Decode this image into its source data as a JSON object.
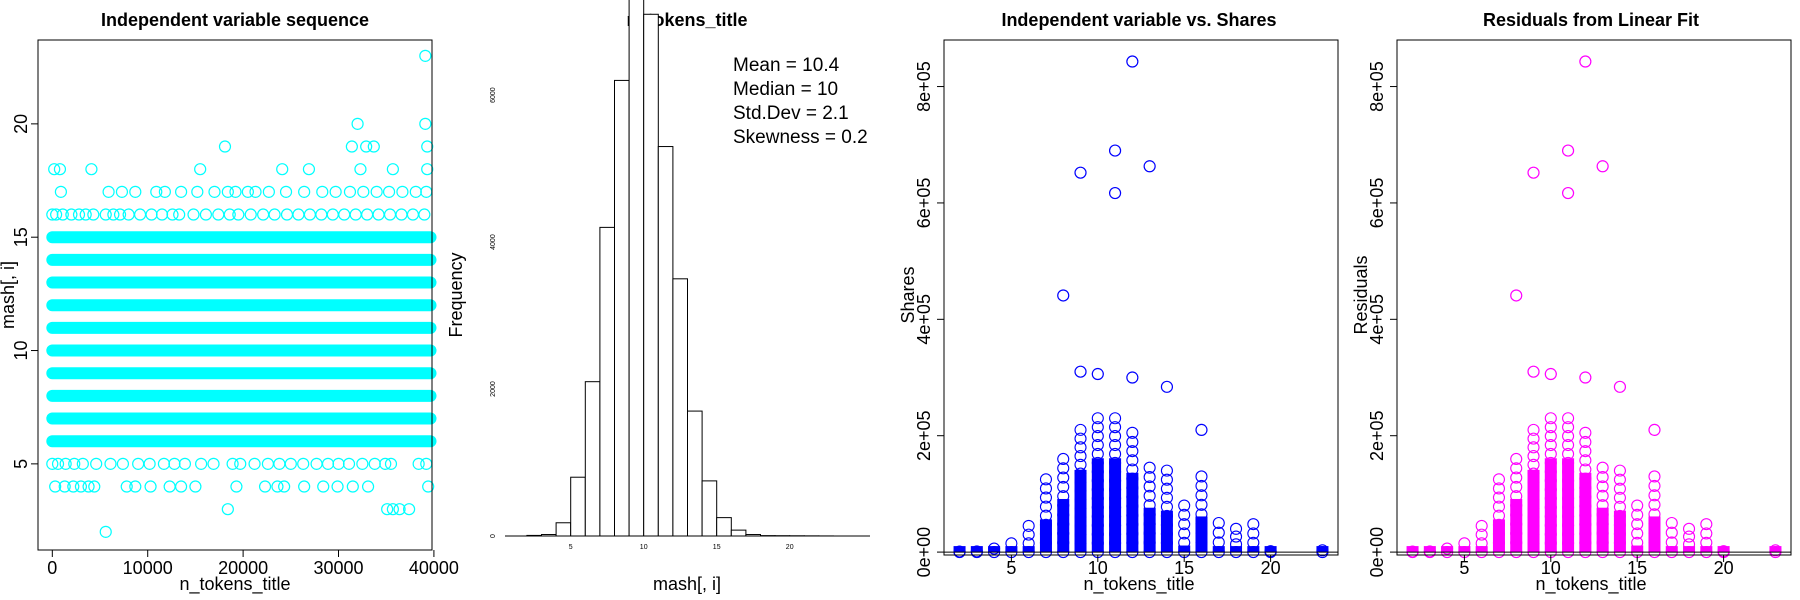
{
  "chart_data": [
    {
      "type": "scatter",
      "title": "Independent variable sequence",
      "xlabel": "n_tokens_title",
      "ylabel": "mash[, i]",
      "xlim": [
        -1500,
        39800
      ],
      "ylim": [
        1.2,
        23.7
      ],
      "xticks": [
        0,
        10000,
        20000,
        30000,
        40000
      ],
      "yticks": [
        5,
        10,
        15,
        20
      ],
      "marker_color": "#00FFFF",
      "n_points": 39644,
      "dense_levels": [
        6,
        7,
        8,
        9,
        10,
        11,
        12,
        13,
        14,
        15
      ],
      "sparse_points": [
        {
          "y": 16,
          "x": [
            0,
            400,
            1100,
            2000,
            2800,
            3500,
            4300,
            5600,
            6400,
            7100,
            8000,
            9200,
            10400,
            11500,
            12600,
            13300,
            14800,
            16100,
            17400,
            18600,
            19500,
            20800,
            22100,
            23300,
            24600,
            25800,
            27000,
            28200,
            29400,
            30600,
            31800,
            33000,
            34200,
            35400,
            36600,
            37800,
            39000
          ]
        },
        {
          "y": 17,
          "x": [
            900,
            5900,
            7300,
            8700,
            10900,
            11800,
            13500,
            15200,
            17000,
            18400,
            19200,
            20500,
            21300,
            22700,
            24500,
            26400,
            28300,
            29700,
            31200,
            32600,
            34000,
            35300,
            36700,
            38100,
            39200
          ]
        },
        {
          "y": 18,
          "x": [
            200,
            800,
            4100,
            15500,
            24100,
            26900,
            32300,
            35700,
            39300
          ]
        },
        {
          "y": 19,
          "x": [
            18100,
            31400,
            32900,
            33700,
            39300
          ]
        },
        {
          "y": 20,
          "x": [
            32000,
            39100
          ]
        },
        {
          "y": 23,
          "x": [
            39100
          ]
        },
        {
          "y": 5,
          "x": [
            0,
            600,
            1400,
            2300,
            3200,
            4600,
            6100,
            7400,
            9000,
            10200,
            11700,
            12800,
            13900,
            15600,
            16900,
            18900,
            19700,
            21200,
            22600,
            23800,
            25000,
            26300,
            27700,
            28900,
            30000,
            31100,
            32500,
            33800,
            34900,
            35500,
            38400,
            39200
          ]
        },
        {
          "y": 4,
          "x": [
            300,
            1300,
            2200,
            3000,
            3800,
            4400,
            7800,
            8700,
            10300,
            12300,
            13500,
            15000,
            19300,
            22300,
            23600,
            24300,
            26400,
            28400,
            29900,
            31500,
            33100,
            39400
          ]
        },
        {
          "y": 3,
          "x": [
            18400,
            35100,
            35700,
            36400,
            37400
          ]
        },
        {
          "y": 2,
          "x": [
            5600
          ]
        }
      ]
    },
    {
      "type": "bar",
      "title": "n_tokens_title",
      "xlabel": "mash[, i]",
      "ylabel": "Frequency",
      "xlim": [
        0.5,
        25.5
      ],
      "ylim": [
        0,
        6750
      ],
      "xticks": [
        5,
        10,
        15,
        20
      ],
      "yticks": [
        0,
        2000,
        4000,
        6000
      ],
      "bin_edges": [
        2,
        3,
        4,
        5,
        6,
        7,
        8,
        9,
        10,
        11,
        12,
        13,
        14,
        15,
        16,
        17,
        18,
        19,
        20,
        21,
        22,
        23
      ],
      "values": [
        8,
        20,
        180,
        800,
        2100,
        4200,
        6200,
        7500,
        7100,
        5300,
        3500,
        1700,
        750,
        250,
        80,
        20,
        5,
        4,
        3,
        2,
        1
      ],
      "annotations": [
        "Mean = 10.4",
        "Median = 10",
        "Std.Dev = 2.1",
        "Skewness = 0.2"
      ]
    },
    {
      "type": "scatter",
      "title": "Independent variable vs. Shares",
      "xlabel": "n_tokens_title",
      "ylabel": "Shares",
      "xlim": [
        1.1,
        23.9
      ],
      "ylim": [
        -5000,
        880000
      ],
      "xticks": [
        5,
        10,
        15,
        20
      ],
      "yticks": [
        0,
        200000,
        400000,
        600000,
        800000
      ],
      "ytick_labels": [
        "0e+00",
        "2e+05",
        "4e+05",
        "6e+05",
        "8e+05"
      ],
      "marker_color": "#0000FF",
      "reference_line_y": 0,
      "column_max_shares": [
        [
          2,
          1000
        ],
        [
          3,
          1200
        ],
        [
          4,
          6000
        ],
        [
          5,
          15000
        ],
        [
          6,
          45000
        ],
        [
          7,
          125000
        ],
        [
          8,
          160000
        ],
        [
          9,
          210000
        ],
        [
          10,
          230000
        ],
        [
          11,
          230000
        ],
        [
          12,
          205000
        ],
        [
          13,
          145000
        ],
        [
          14,
          140000
        ],
        [
          15,
          80000
        ],
        [
          16,
          130000
        ],
        [
          17,
          50000
        ],
        [
          18,
          40000
        ],
        [
          19,
          48000
        ],
        [
          20,
          1500
        ],
        [
          23,
          3000
        ]
      ],
      "outliers": [
        [
          8,
          441000
        ],
        [
          9,
          310000
        ],
        [
          9,
          652000
        ],
        [
          10,
          306000
        ],
        [
          11,
          617000
        ],
        [
          11,
          690000
        ],
        [
          12,
          300000
        ],
        [
          12,
          843000
        ],
        [
          13,
          663000
        ],
        [
          14,
          284000
        ],
        [
          16,
          210000
        ]
      ]
    },
    {
      "type": "scatter",
      "title": "Residuals from Linear Fit",
      "xlabel": "n_tokens_title",
      "ylabel": "Residuals",
      "xlim": [
        1.1,
        23.9
      ],
      "ylim": [
        -5000,
        880000
      ],
      "xticks": [
        5,
        10,
        15,
        20
      ],
      "yticks": [
        0,
        200000,
        400000,
        600000,
        800000
      ],
      "ytick_labels": [
        "0e+00",
        "2e+05",
        "4e+05",
        "6e+05",
        "8e+05"
      ],
      "marker_color": "#FF00FF",
      "reference_line_y": 0,
      "column_max_residuals": [
        [
          2,
          1000
        ],
        [
          3,
          1200
        ],
        [
          4,
          6000
        ],
        [
          5,
          15000
        ],
        [
          6,
          45000
        ],
        [
          7,
          125000
        ],
        [
          8,
          160000
        ],
        [
          9,
          210000
        ],
        [
          10,
          230000
        ],
        [
          11,
          230000
        ],
        [
          12,
          205000
        ],
        [
          13,
          145000
        ],
        [
          14,
          140000
        ],
        [
          15,
          80000
        ],
        [
          16,
          130000
        ],
        [
          17,
          50000
        ],
        [
          18,
          40000
        ],
        [
          19,
          48000
        ],
        [
          20,
          1500
        ],
        [
          23,
          3000
        ]
      ],
      "outliers": [
        [
          8,
          441000
        ],
        [
          9,
          310000
        ],
        [
          9,
          652000
        ],
        [
          10,
          306000
        ],
        [
          11,
          617000
        ],
        [
          11,
          690000
        ],
        [
          12,
          300000
        ],
        [
          12,
          843000
        ],
        [
          13,
          663000
        ],
        [
          14,
          284000
        ],
        [
          16,
          210000
        ]
      ]
    }
  ]
}
